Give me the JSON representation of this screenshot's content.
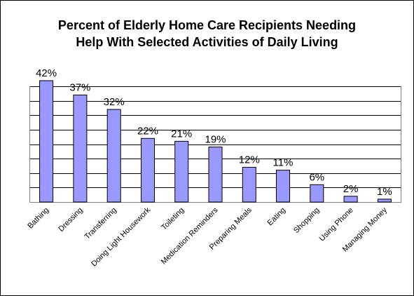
{
  "chart_data": {
    "type": "bar",
    "title": "Percent of Elderly Home Care Recipients Needing\nHelp With Selected Activities of Daily Living",
    "categories": [
      "Bathing",
      "Dressing",
      "Transferring",
      "Doing Light Housework",
      "Toileting",
      "Medication Reminders",
      "Preparing Meals",
      "Eating",
      "Shopping",
      "Using Phone",
      "Managing Money"
    ],
    "values": [
      42,
      37,
      32,
      22,
      21,
      19,
      12,
      11,
      6,
      2,
      1
    ],
    "data_labels": [
      "42%",
      "37%",
      "32%",
      "22%",
      "21%",
      "19%",
      "12%",
      "11%",
      "6%",
      "2%",
      "1%"
    ],
    "ylim": [
      0,
      40
    ],
    "grid": true,
    "legend": "none",
    "bar_color": "#9999FF",
    "bar_edge_color": "#000000",
    "grid_color": "#000000"
  }
}
